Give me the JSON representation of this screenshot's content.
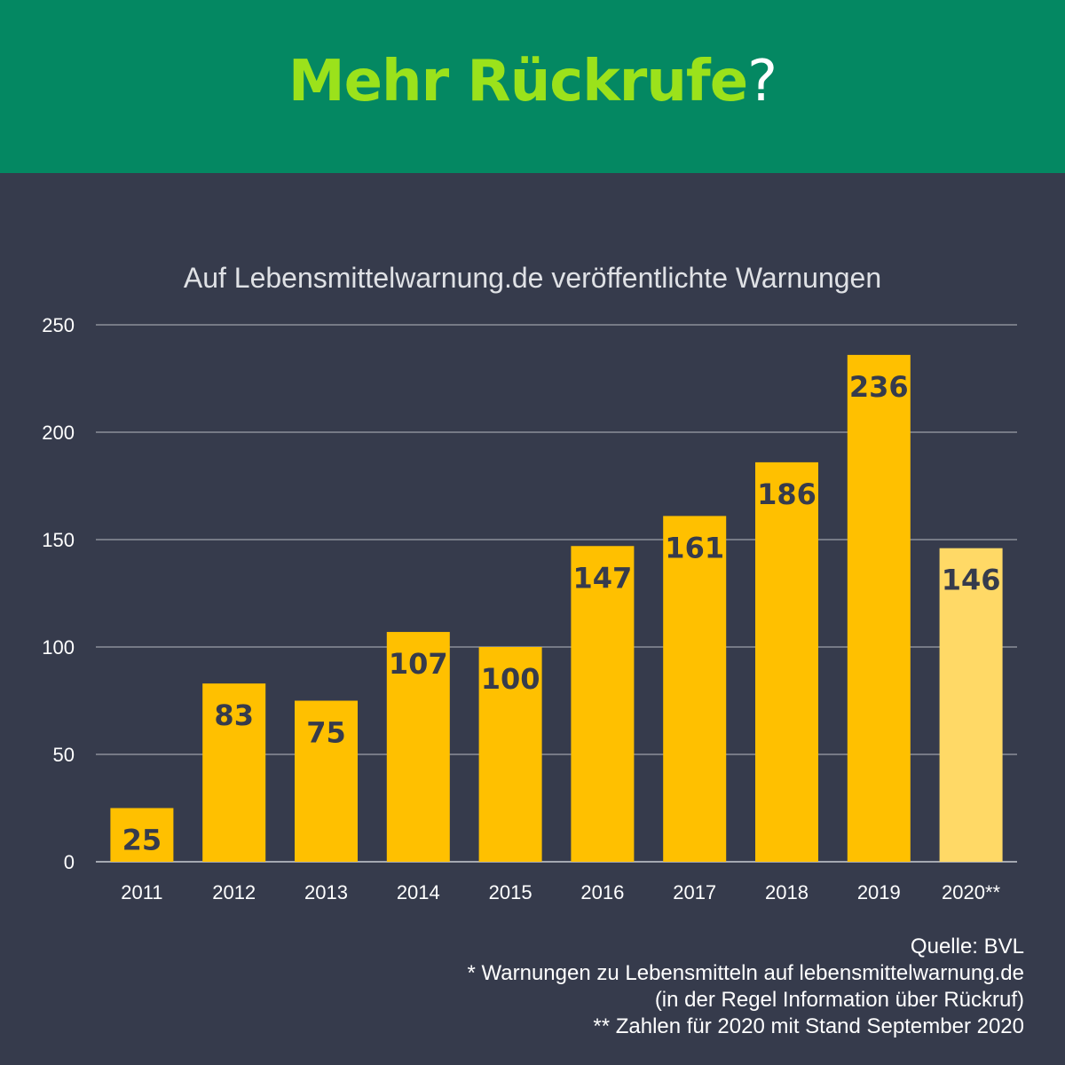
{
  "header": {
    "title_main": "Mehr Rückrufe",
    "title_suffix": "?"
  },
  "colors": {
    "header_bg": "#048862",
    "title_green": "#9be21b",
    "background": "#363b4c",
    "bar": "#ffc000",
    "bar_partial": "#ffd966",
    "gridline": "#8c909a",
    "label_dark": "#363b4c",
    "text": "#ffffff"
  },
  "chart_data": {
    "type": "bar",
    "title": "Auf Lebensmittelwarnung.de veröffentlichte Warnungen",
    "categories": [
      "2011",
      "2012",
      "2013",
      "2014",
      "2015",
      "2016",
      "2017",
      "2018",
      "2019",
      "2020**"
    ],
    "values": [
      25,
      83,
      75,
      107,
      100,
      147,
      161,
      186,
      236,
      146
    ],
    "data_labels": [
      "25",
      "83",
      "75",
      "107",
      "100",
      "147",
      "161",
      "186",
      "236",
      "146"
    ],
    "ylim": [
      0,
      250
    ],
    "yticks": [
      0,
      50,
      100,
      150,
      200,
      250
    ],
    "grid": true,
    "highlight_last_bar_lighter": true
  },
  "footer": {
    "source": "Quelle: BVL",
    "note1": "* Warnungen zu Lebensmitteln auf lebensmittelwarnung.de",
    "note2": "(in der Regel Information über Rückruf)",
    "note3": "** Zahlen für 2020 mit Stand September 2020"
  }
}
